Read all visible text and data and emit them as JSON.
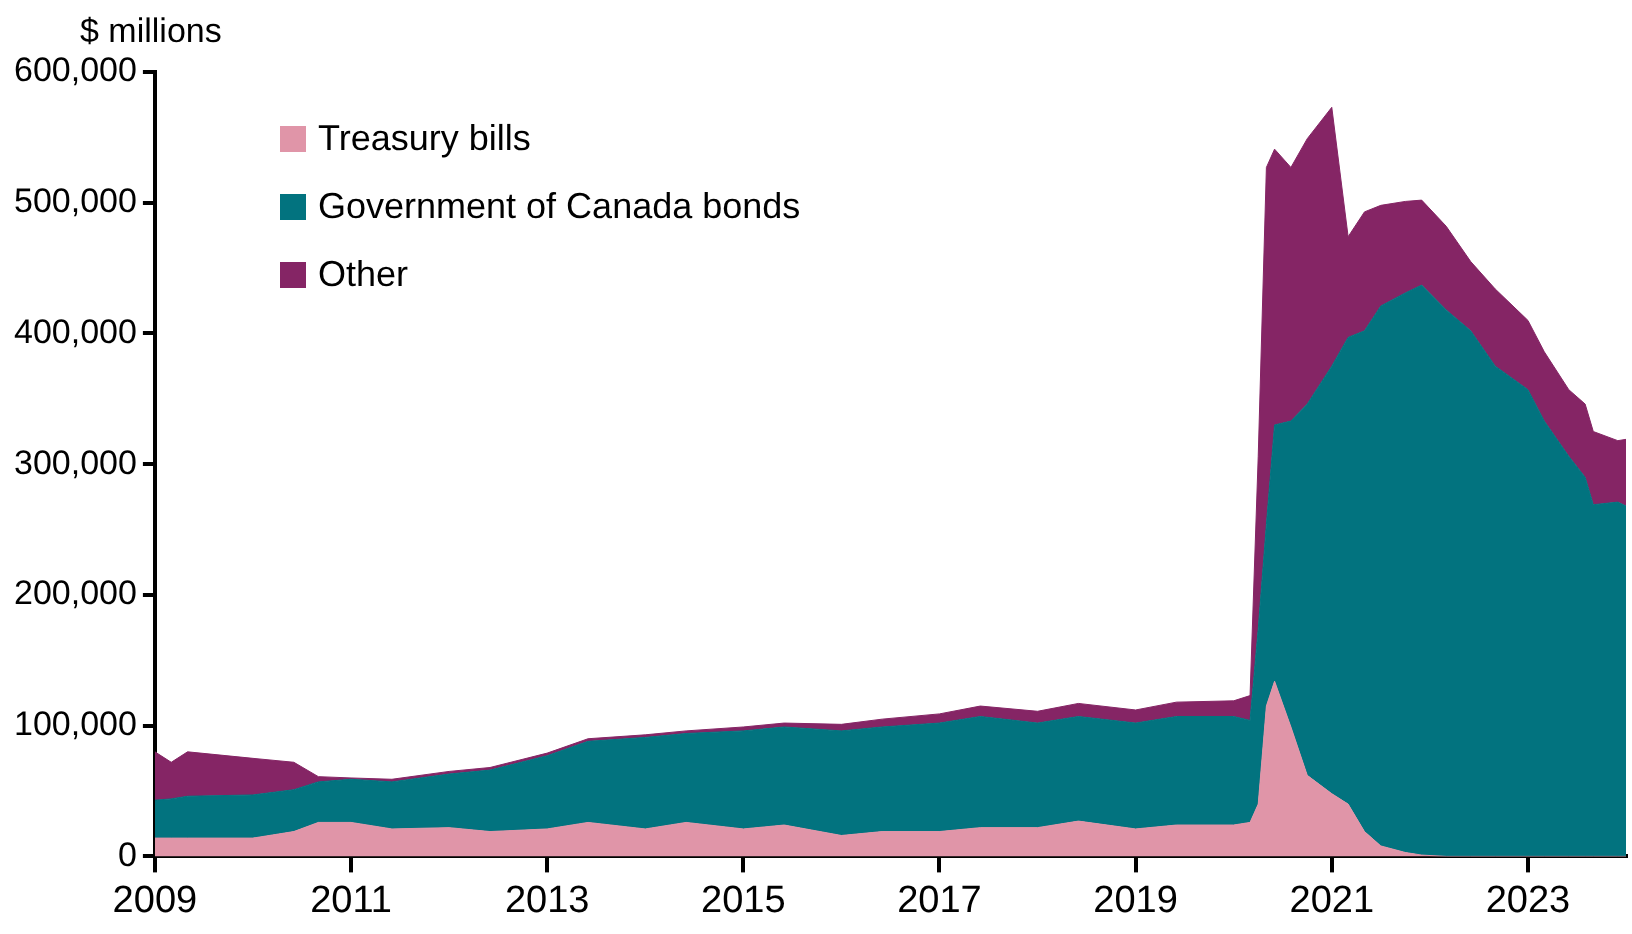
{
  "chart_data": {
    "type": "area",
    "stacked": true,
    "ylabel": "$ millions",
    "legend": "top left",
    "grid": false,
    "x": [
      "2009-01",
      "2009-03",
      "2009-05",
      "2010-01",
      "2010-06",
      "2010-09",
      "2011-01",
      "2011-06",
      "2012-01",
      "2012-06",
      "2013-01",
      "2013-06",
      "2014-01",
      "2014-06",
      "2015-01",
      "2015-06",
      "2016-01",
      "2016-06",
      "2017-01",
      "2017-06",
      "2018-01",
      "2018-06",
      "2019-01",
      "2019-06",
      "2020-01",
      "2020-03",
      "2020-04",
      "2020-05",
      "2020-06",
      "2020-08",
      "2020-10",
      "2021-01",
      "2021-03",
      "2021-05",
      "2021-07",
      "2021-10",
      "2021-12",
      "2022-03",
      "2022-06",
      "2022-09",
      "2023-01",
      "2023-03",
      "2023-06",
      "2023-08",
      "2023-09",
      "2023-12",
      "2024-01"
    ],
    "xlim": [
      "2009-01",
      "2024-01"
    ],
    "xticks": [
      "2009",
      "2011",
      "2013",
      "2015",
      "2017",
      "2019",
      "2021",
      "2023"
    ],
    "ylim": [
      0,
      600000
    ],
    "yticks": [
      0,
      {
        "value": 100000,
        "label": "100,000"
      },
      {
        "value": 200000,
        "label": "200,000"
      },
      {
        "value": 300000,
        "label": "300,000"
      },
      {
        "value": 400000,
        "label": "400,000"
      },
      {
        "value": 500000,
        "label": "500,000"
      },
      {
        "value": 600000,
        "label": "600,000"
      }
    ],
    "series": [
      {
        "name": "Treasury bills",
        "color": "#e095a8",
        "values": [
          14000,
          14000,
          14000,
          14000,
          19000,
          26000,
          26000,
          21000,
          22000,
          19000,
          21000,
          26000,
          21000,
          26000,
          21000,
          24000,
          16000,
          19000,
          19000,
          22000,
          22000,
          27000,
          21000,
          24000,
          24000,
          26000,
          40000,
          115000,
          134000,
          99000,
          62000,
          48000,
          40000,
          19000,
          8000,
          3000,
          1000,
          0,
          0,
          0,
          0,
          0,
          0,
          0,
          0,
          0,
          0
        ]
      },
      {
        "name": "Government of Canada bonds",
        "color": "#02737f",
        "values": [
          29000,
          30000,
          32000,
          33000,
          32000,
          31000,
          33000,
          36000,
          41000,
          47000,
          56000,
          62000,
          70000,
          68000,
          75000,
          75000,
          80000,
          80000,
          83000,
          85000,
          80000,
          80000,
          81000,
          83000,
          83000,
          78000,
          134000,
          139000,
          196000,
          234000,
          284000,
          327000,
          357000,
          383000,
          413000,
          428000,
          436000,
          418000,
          402000,
          375000,
          357000,
          333000,
          306000,
          290000,
          269000,
          271000,
          268000
        ]
      },
      {
        "name": "Other",
        "color": "#852565",
        "values": [
          37000,
          28000,
          34000,
          28000,
          21000,
          4000,
          1000,
          2000,
          2000,
          2000,
          2000,
          2000,
          2000,
          2000,
          3000,
          3000,
          5000,
          6000,
          7000,
          8000,
          9000,
          10000,
          10000,
          11000,
          12000,
          19000,
          132000,
          273000,
          211000,
          194000,
          203000,
          198000,
          77000,
          91000,
          77000,
          70000,
          65000,
          64000,
          53000,
          59000,
          53000,
          53000,
          51000,
          56000,
          56000,
          47000,
          51000
        ]
      }
    ]
  }
}
